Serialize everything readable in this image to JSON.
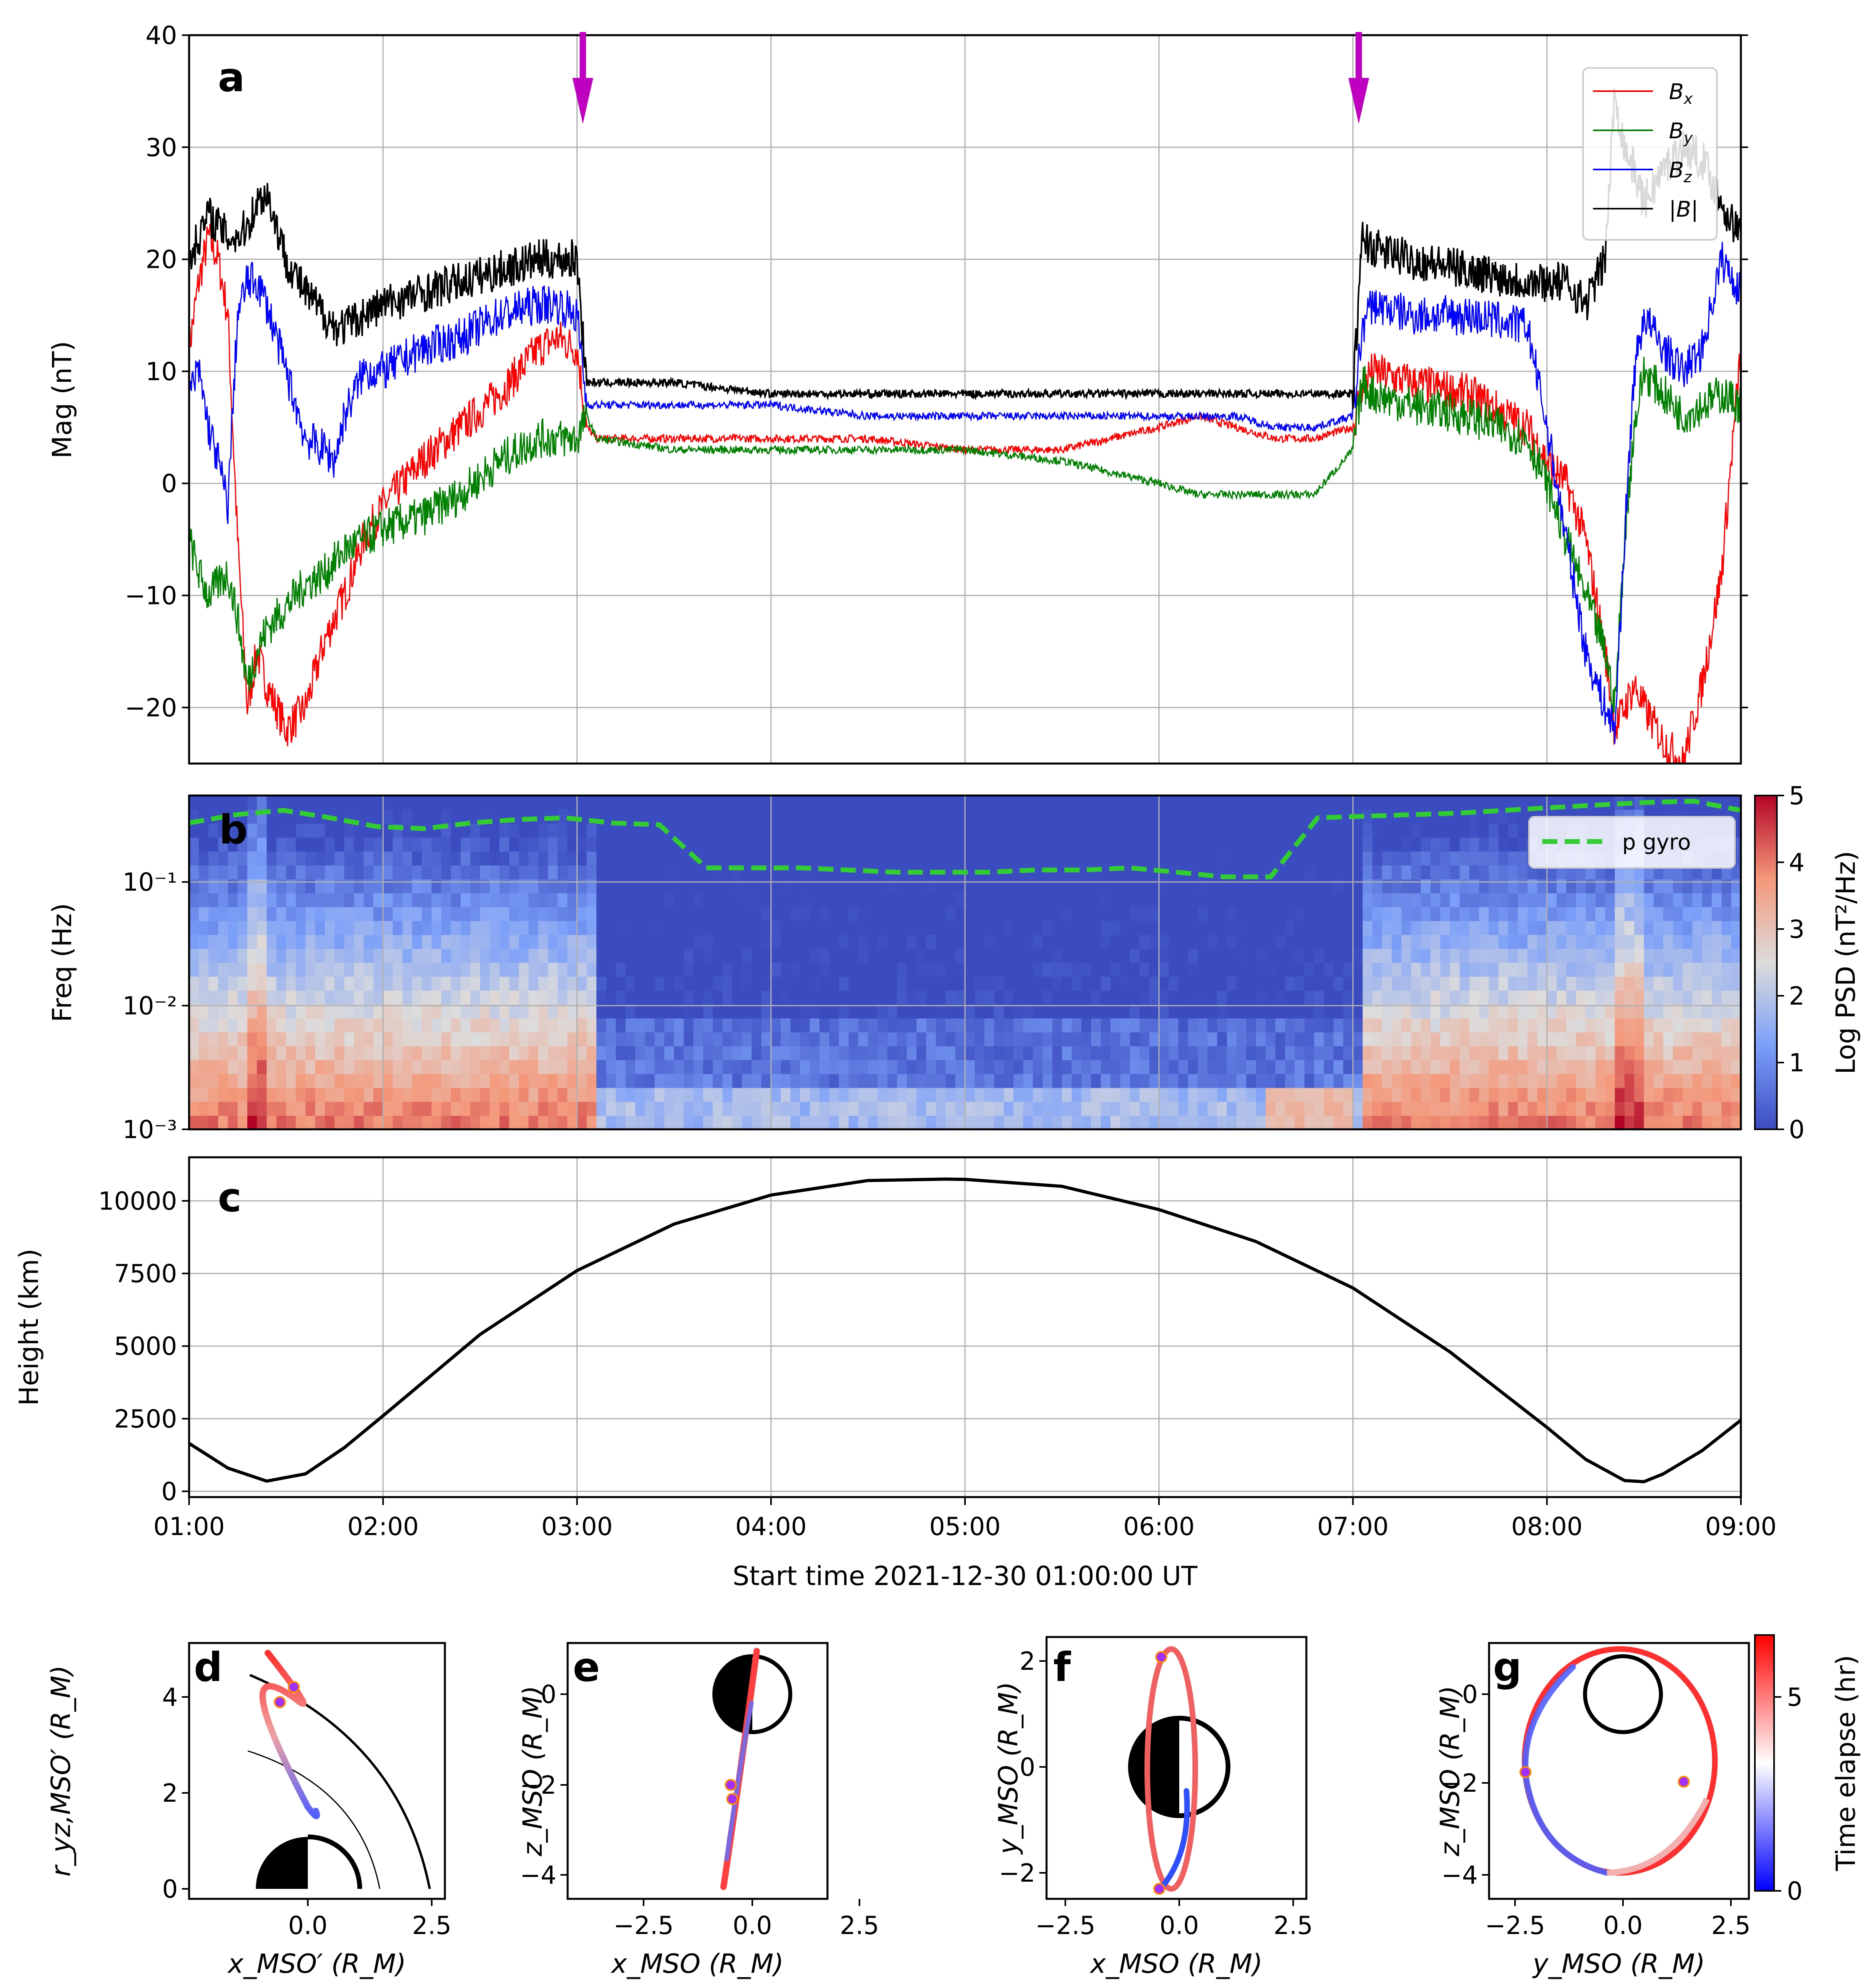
{
  "chart_data": [
    {
      "panel": "a",
      "type": "line",
      "ylabel": "Mag (nT)",
      "ylim": [
        -25,
        40
      ],
      "yticks": [
        "40",
        "30",
        "20",
        "10",
        "0",
        "−10",
        "−20"
      ],
      "x_hours": [
        1,
        1.05,
        1.1,
        1.15,
        1.2,
        1.25,
        1.3,
        1.35,
        1.4,
        1.5,
        1.6,
        1.7,
        1.75,
        1.8,
        1.9,
        2,
        2.2,
        2.4,
        2.6,
        2.8,
        2.9,
        3,
        3.05,
        3.1,
        3.5,
        4,
        4.5,
        5,
        5.5,
        6,
        6.2,
        6.4,
        6.6,
        6.8,
        7,
        7.05,
        7.1,
        7.3,
        7.6,
        7.9,
        8.0,
        8.1,
        8.2,
        8.3,
        8.35,
        8.4,
        8.45,
        8.5,
        8.6,
        8.7,
        8.8,
        8.9,
        9
      ],
      "series": [
        {
          "name": "B_x",
          "color": "#ff0000",
          "values": [
            12,
            18,
            22,
            20,
            15,
            -5,
            -20,
            -15,
            -18,
            -22,
            -20,
            -14,
            -12,
            -10,
            -5,
            -2,
            2,
            5,
            8,
            12,
            13,
            12,
            5,
            4,
            4,
            4,
            4,
            3,
            3,
            5,
            6,
            5,
            4,
            4,
            5,
            9,
            10,
            9,
            8,
            5,
            2,
            0,
            -5,
            -15,
            -22,
            -20,
            -18,
            -20,
            -23,
            -25,
            -18,
            -8,
            12
          ]
        },
        {
          "name": "B_y",
          "color": "#008000",
          "values": [
            -5,
            -8,
            -10,
            -9,
            -8,
            -12,
            -18,
            -15,
            -13,
            -11,
            -9,
            -8,
            -7,
            -6,
            -5,
            -4,
            -3,
            -1,
            2,
            4,
            4,
            4,
            6,
            4,
            3,
            3,
            3,
            3,
            2,
            0,
            -1,
            -1,
            -1,
            -1,
            3,
            9,
            8,
            7,
            6,
            4,
            0,
            -5,
            -10,
            -15,
            -20,
            -5,
            5,
            10,
            8,
            6,
            7,
            8,
            7
          ]
        },
        {
          "name": "B_z",
          "color": "#0000ff",
          "values": [
            8,
            10,
            5,
            2,
            -2,
            15,
            18,
            18,
            16,
            10,
            4,
            3,
            2,
            6,
            10,
            10,
            12,
            13,
            15,
            16,
            16,
            15,
            7,
            7,
            7,
            7,
            6,
            6,
            6,
            6,
            6,
            6,
            5,
            5,
            6,
            14,
            16,
            15,
            15,
            14,
            5,
            -5,
            -15,
            -20,
            -22,
            -5,
            10,
            15,
            12,
            10,
            12,
            20,
            17
          ]
        },
        {
          "name": "|B|",
          "color": "#000000",
          "values": [
            20,
            22,
            24,
            23,
            22,
            22,
            23,
            25,
            26,
            20,
            17,
            15,
            14,
            14,
            15,
            16,
            17,
            18,
            19,
            20,
            20,
            20,
            9,
            9,
            9,
            8,
            8,
            8,
            8,
            8,
            8,
            8,
            8,
            8,
            8,
            22,
            21,
            20,
            19,
            18,
            18,
            18,
            16,
            20,
            35,
            30,
            28,
            25,
            28,
            30,
            29,
            25,
            22
          ]
        }
      ],
      "legend": [
        "B_x",
        "B_y",
        "B_z",
        "|B|"
      ],
      "legend_position": "top-right",
      "arrows_at_hours": [
        3.03,
        7.03
      ],
      "grid": true
    },
    {
      "panel": "b",
      "type": "heatmap",
      "ylabel": "Freq (Hz)",
      "yticks": [
        "10⁻¹",
        "10⁻²",
        "10⁻³"
      ],
      "yscale": "log",
      "ylim": [
        0.001,
        0.5
      ],
      "colorbar_label": "Log PSD (nT²/Hz)",
      "colorbar_range": [
        0,
        5
      ],
      "colorbar_ticks": [
        "5",
        "4",
        "3",
        "2",
        "1",
        "0"
      ],
      "legend": [
        "p gyro"
      ],
      "legend_position": "top-right",
      "p_gyro_hz": [
        0.3,
        0.35,
        0.38,
        0.33,
        0.28,
        0.27,
        0.3,
        0.32,
        0.33,
        0.3,
        0.29,
        0.13,
        0.13,
        0.13,
        0.125,
        0.12,
        0.12,
        0.12,
        0.125,
        0.125,
        0.13,
        0.12,
        0.11,
        0.11,
        0.33,
        0.34,
        0.35,
        0.36,
        0.38,
        0.4,
        0.42,
        0.44,
        0.45,
        0.38
      ],
      "grid": true
    },
    {
      "panel": "c",
      "type": "line",
      "ylabel": "Height (km)",
      "ylim": [
        -200,
        11500
      ],
      "yticks": [
        "10000",
        "7500",
        "5000",
        "2500",
        "0"
      ],
      "x_hours": [
        1,
        1.2,
        1.4,
        1.6,
        1.8,
        2,
        2.5,
        3,
        3.5,
        4,
        4.5,
        4.9,
        5,
        5.5,
        6,
        6.5,
        7,
        7.5,
        8,
        8.2,
        8.4,
        8.5,
        8.6,
        8.8,
        9
      ],
      "values": [
        1650,
        800,
        350,
        600,
        1500,
        2600,
        5400,
        7600,
        9200,
        10200,
        10700,
        10750,
        10740,
        10500,
        9700,
        8600,
        7000,
        4800,
        2200,
        1100,
        370,
        330,
        600,
        1400,
        2450
      ],
      "grid": true
    }
  ],
  "time_axis": {
    "ticks": [
      "01:00",
      "02:00",
      "03:00",
      "04:00",
      "05:00",
      "06:00",
      "07:00",
      "08:00",
      "09:00"
    ],
    "label": "Start time 2021-12-30 01:00:00 UT"
  },
  "panels": {
    "a": "a",
    "b": "b",
    "c": "c",
    "d": "d",
    "e": "e",
    "f": "f",
    "g": "g"
  },
  "orbit_plots": [
    {
      "panel": "d",
      "xlabel": "x_MSO′ (R_M)",
      "ylabel": "r_yz,MSO′ (R_M)",
      "xticks": [
        "0.0",
        "2.5"
      ],
      "yticks": [
        "0",
        "2",
        "4"
      ]
    },
    {
      "panel": "e",
      "xlabel": "x_MSO (R_M)",
      "ylabel": "z_MSO (R_M)",
      "xticks": [
        "−2.5",
        "0.0",
        "2.5"
      ],
      "yticks": [
        "0",
        "−2",
        "−4"
      ]
    },
    {
      "panel": "f",
      "xlabel": "x_MSO (R_M)",
      "ylabel": "y_MSO (R_M)",
      "xticks": [
        "−2.5",
        "0.0",
        "2.5"
      ],
      "yticks": [
        "2",
        "0",
        "−2"
      ]
    },
    {
      "panel": "g",
      "xlabel": "y_MSO (R_M)",
      "ylabel": "z_MSO (R_M)",
      "xticks": [
        "−2.5",
        "0.0",
        "2.5"
      ],
      "yticks": [
        "0",
        "−2",
        "−4"
      ],
      "colorbar_label": "Time elapse (hr)",
      "colorbar_ticks": [
        "5",
        "0"
      ]
    }
  ]
}
